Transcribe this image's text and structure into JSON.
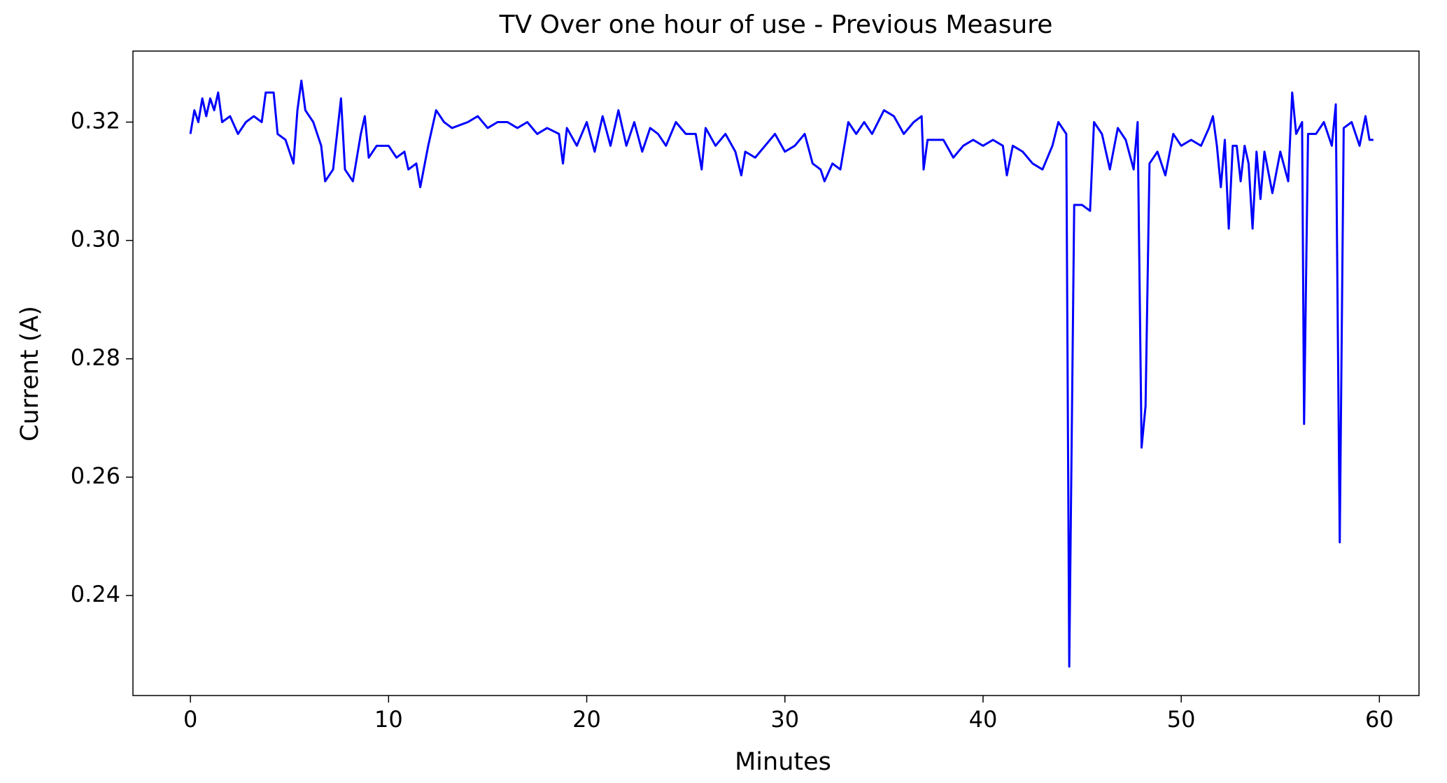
{
  "chart_data": {
    "type": "line",
    "title": "TV Over one hour of use -  Previous Measure",
    "x_label": "Minutes",
    "y_label": "Current (A)",
    "xlim": [
      -2.9,
      62.0
    ],
    "ylim": [
      0.2231,
      0.332
    ],
    "xticks": [
      0,
      10,
      20,
      30,
      40,
      50,
      60
    ],
    "yticks": [
      0.24,
      0.26,
      0.28,
      {
        "value": 0.3,
        "label": "0.30"
      },
      0.32
    ],
    "grid": false,
    "series": [
      {
        "color": "#0000ff",
        "x": [
          0,
          0.2,
          0.4,
          0.6,
          0.8,
          1.0,
          1.2,
          1.4,
          1.6,
          2.0,
          2.4,
          2.8,
          3.2,
          3.6,
          3.8,
          4.2,
          4.4,
          4.8,
          5.2,
          5.4,
          5.6,
          5.8,
          6.2,
          6.6,
          6.8,
          7.2,
          7.6,
          7.8,
          8.2,
          8.6,
          8.8,
          9.0,
          9.4,
          10.0,
          10.4,
          10.8,
          11.0,
          11.4,
          11.6,
          12.0,
          12.4,
          12.8,
          13.2,
          14.0,
          14.5,
          15.0,
          15.5,
          16.0,
          16.5,
          17.0,
          17.5,
          18.0,
          18.6,
          18.8,
          19.0,
          19.5,
          20.0,
          20.4,
          20.8,
          21.2,
          21.6,
          22.0,
          22.4,
          22.8,
          23.2,
          23.6,
          24.0,
          24.5,
          25.0,
          25.5,
          25.8,
          26.0,
          26.5,
          27.0,
          27.5,
          27.8,
          28.0,
          28.5,
          29.0,
          29.5,
          30.0,
          30.5,
          31.0,
          31.4,
          31.8,
          32.0,
          32.4,
          32.8,
          33.2,
          33.6,
          34.0,
          34.4,
          35.0,
          35.5,
          36.0,
          36.5,
          36.9,
          37.0,
          37.2,
          38.0,
          38.5,
          39.0,
          39.5,
          40.0,
          40.5,
          41.0,
          41.2,
          41.5,
          42.0,
          42.5,
          43.0,
          43.5,
          43.8,
          44.2,
          44.35,
          44.6,
          45.0,
          45.4,
          45.6,
          46.0,
          46.4,
          46.8,
          47.2,
          47.6,
          47.8,
          48.0,
          48.2,
          48.4,
          48.8,
          49.2,
          49.6,
          50.0,
          50.5,
          51.0,
          51.4,
          51.6,
          51.8,
          52.0,
          52.2,
          52.4,
          52.6,
          52.8,
          53.0,
          53.2,
          53.4,
          53.6,
          53.8,
          54.0,
          54.2,
          54.6,
          55.0,
          55.4,
          55.6,
          55.8,
          56.1,
          56.2,
          56.4,
          56.8,
          57.2,
          57.6,
          57.8,
          58.0,
          58.2,
          58.6,
          59.0,
          59.3,
          59.5,
          59.7
        ],
        "values": [
          0.318,
          0.322,
          0.32,
          0.324,
          0.321,
          0.324,
          0.322,
          0.325,
          0.32,
          0.321,
          0.318,
          0.32,
          0.321,
          0.32,
          0.325,
          0.325,
          0.318,
          0.317,
          0.313,
          0.322,
          0.327,
          0.322,
          0.32,
          0.316,
          0.31,
          0.312,
          0.324,
          0.312,
          0.31,
          0.318,
          0.321,
          0.314,
          0.316,
          0.316,
          0.314,
          0.315,
          0.312,
          0.313,
          0.309,
          0.316,
          0.322,
          0.32,
          0.319,
          0.32,
          0.321,
          0.319,
          0.32,
          0.32,
          0.319,
          0.32,
          0.318,
          0.319,
          0.318,
          0.313,
          0.319,
          0.316,
          0.32,
          0.315,
          0.321,
          0.316,
          0.322,
          0.316,
          0.32,
          0.315,
          0.319,
          0.318,
          0.316,
          0.32,
          0.318,
          0.318,
          0.312,
          0.319,
          0.316,
          0.318,
          0.315,
          0.311,
          0.315,
          0.314,
          0.316,
          0.318,
          0.315,
          0.316,
          0.318,
          0.313,
          0.312,
          0.31,
          0.313,
          0.312,
          0.32,
          0.318,
          0.32,
          0.318,
          0.322,
          0.321,
          0.318,
          0.32,
          0.321,
          0.312,
          0.317,
          0.317,
          0.314,
          0.316,
          0.317,
          0.316,
          0.317,
          0.316,
          0.311,
          0.316,
          0.315,
          0.313,
          0.312,
          0.316,
          0.32,
          0.318,
          0.228,
          0.306,
          0.306,
          0.305,
          0.32,
          0.318,
          0.312,
          0.319,
          0.317,
          0.312,
          0.32,
          0.265,
          0.272,
          0.313,
          0.315,
          0.311,
          0.318,
          0.316,
          0.317,
          0.316,
          0.319,
          0.321,
          0.316,
          0.309,
          0.317,
          0.302,
          0.316,
          0.316,
          0.31,
          0.316,
          0.313,
          0.302,
          0.315,
          0.307,
          0.315,
          0.308,
          0.315,
          0.31,
          0.325,
          0.318,
          0.32,
          0.269,
          0.318,
          0.318,
          0.32,
          0.316,
          0.323,
          0.249,
          0.319,
          0.32,
          0.316,
          0.321,
          0.317,
          0.317
        ]
      }
    ]
  }
}
